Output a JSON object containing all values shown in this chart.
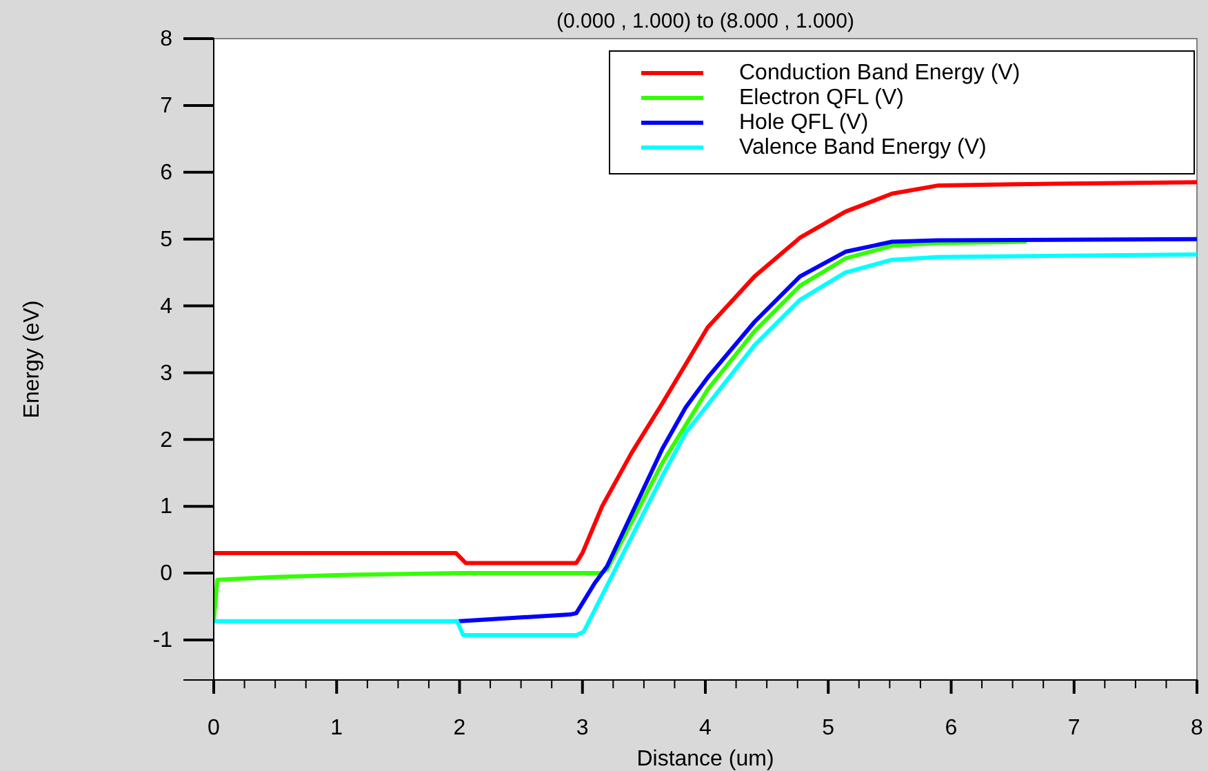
{
  "chart_data": {
    "type": "line",
    "title": "(0.000 , 1.000) to (8.000 , 1.000)",
    "xlabel": "Distance (um)",
    "ylabel": "Energy (eV)",
    "xlim": [
      0,
      8
    ],
    "ylim": [
      -1.6,
      8
    ],
    "xticks": [
      0,
      {
        "value": 0.25,
        "label": null
      },
      {
        "value": 0.5,
        "label": null
      },
      {
        "value": 0.75,
        "label": null
      },
      1,
      {
        "value": 1.25,
        "label": null
      },
      {
        "value": 1.5,
        "label": null
      },
      {
        "value": 1.75,
        "label": null
      },
      2,
      {
        "value": 2.25,
        "label": null
      },
      {
        "value": 2.5,
        "label": null
      },
      {
        "value": 2.75,
        "label": null
      },
      3,
      {
        "value": 3.25,
        "label": null
      },
      {
        "value": 3.5,
        "label": null
      },
      {
        "value": 3.75,
        "label": null
      },
      4,
      {
        "value": 4.25,
        "label": null
      },
      {
        "value": 4.5,
        "label": null
      },
      {
        "value": 4.75,
        "label": null
      },
      5,
      {
        "value": 5.25,
        "label": null
      },
      {
        "value": 5.5,
        "label": null
      },
      {
        "value": 5.75,
        "label": null
      },
      6,
      {
        "value": 6.25,
        "label": null
      },
      {
        "value": 6.5,
        "label": null
      },
      {
        "value": 6.75,
        "label": null
      },
      7,
      {
        "value": 7.25,
        "label": null
      },
      {
        "value": 7.5,
        "label": null
      },
      {
        "value": 7.75,
        "label": null
      },
      8
    ],
    "yticks": [
      -1,
      0,
      1,
      2,
      3,
      4,
      5,
      6,
      7,
      8
    ],
    "grid": false,
    "legend": "top right",
    "marker": "none",
    "line_style": "solid",
    "series": [
      {
        "name": "Conduction Band Energy (V)",
        "color": "#ff0000",
        "x": [
          0,
          1.97,
          2.05,
          2.95,
          3.0,
          3.16,
          3.4,
          3.65,
          4.02,
          4.4,
          4.77,
          5.14,
          5.52,
          5.89,
          6.5,
          8
        ],
        "values": [
          0.3,
          0.3,
          0.15,
          0.15,
          0.3,
          1.0,
          1.8,
          2.54,
          3.68,
          4.44,
          5.02,
          5.41,
          5.68,
          5.8,
          5.82,
          5.85
        ]
      },
      {
        "name": "Electron QFL (V)",
        "color": "#33ff00",
        "x": [
          0,
          0.03,
          0.5,
          1,
          2,
          3.15,
          3.2,
          3.65,
          4.02,
          4.4,
          4.77,
          5.14,
          5.52,
          5.89,
          6.6
        ],
        "values": [
          -0.7,
          -0.1,
          -0.06,
          -0.03,
          0,
          0,
          0.05,
          1.65,
          2.75,
          3.62,
          4.3,
          4.71,
          4.9,
          4.94,
          4.96
        ]
      },
      {
        "name": "Hole QFL (V)",
        "color": "#0000ff",
        "x": [
          2.0,
          2.9,
          2.95,
          3.1,
          3.2,
          3.65,
          3.84,
          4.02,
          4.4,
          4.77,
          5.14,
          5.52,
          5.89,
          8
        ],
        "values": [
          -0.72,
          -0.62,
          -0.6,
          -0.15,
          0.1,
          1.86,
          2.48,
          2.93,
          3.76,
          4.44,
          4.81,
          4.96,
          4.98,
          5.0
        ]
      },
      {
        "name": "Valence Band Energy (V)",
        "color": "#00ffff",
        "x": [
          0,
          1.98,
          2.03,
          2.95,
          3.01,
          3.65,
          3.84,
          4.02,
          4.4,
          4.77,
          5.14,
          5.52,
          5.89,
          8
        ],
        "values": [
          -0.72,
          -0.72,
          -0.93,
          -0.93,
          -0.88,
          1.45,
          2.1,
          2.52,
          3.41,
          4.09,
          4.5,
          4.69,
          4.73,
          4.77
        ]
      }
    ]
  }
}
